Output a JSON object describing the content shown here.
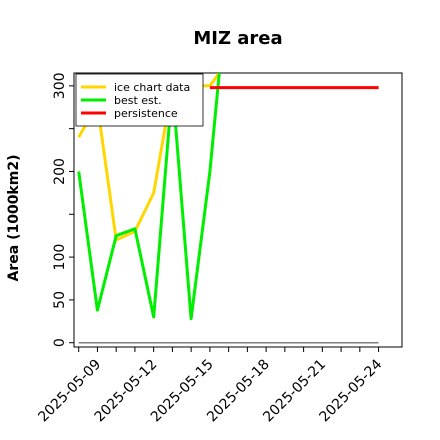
{
  "chart_data": {
    "type": "line",
    "title": "MIZ area",
    "xlabel": "",
    "ylabel": "Area (1000km2)",
    "x_dates": [
      "2025-05-08",
      "2025-05-09",
      "2025-05-10",
      "2025-05-11",
      "2025-05-12",
      "2025-05-13",
      "2025-05-14",
      "2025-05-15",
      "2025-05-16",
      "2025-05-17",
      "2025-05-18",
      "2025-05-19",
      "2025-05-20",
      "2025-05-21",
      "2025-05-22",
      "2025-05-23",
      "2025-05-24"
    ],
    "x_tick_labels": [
      "2025-05-09",
      "2025-05-12",
      "2025-05-15",
      "2025-05-18",
      "2025-05-21",
      "2025-05-24"
    ],
    "y_tick_labels": [
      "0",
      "50",
      "100",
      "200",
      "300"
    ],
    "ylim": [
      -5,
      315
    ],
    "xlim": [
      "2025-05-07T18:00",
      "2025-05-25T06:00"
    ],
    "grid": false,
    "legend_position": "top-left",
    "series": [
      {
        "name": "ice chart data",
        "color": "#FFD700",
        "x": [
          "2025-05-08",
          "2025-05-09",
          "2025-05-10",
          "2025-05-11",
          "2025-05-12",
          "2025-05-13",
          "2025-05-14",
          "2025-05-15",
          "2025-05-15T12:00"
        ],
        "values": [
          240,
          278,
          120,
          130,
          175,
          300,
          300,
          300,
          315
        ]
      },
      {
        "name": "best est.",
        "color": "#00EE00",
        "x": [
          "2025-05-08",
          "2025-05-09",
          "2025-05-10",
          "2025-05-11",
          "2025-05-12",
          "2025-05-13",
          "2025-05-14",
          "2025-05-15",
          "2025-05-15T12:00"
        ],
        "values": [
          200,
          38,
          125,
          133,
          30,
          300,
          28,
          200,
          315
        ]
      },
      {
        "name": "persistence",
        "color": "#FF0000",
        "x": [
          "2025-05-15",
          "2025-05-24"
        ],
        "values": [
          298,
          298
        ]
      }
    ],
    "baseline": {
      "color": "#808080",
      "x": [
        "2025-05-08",
        "2025-05-24"
      ],
      "value": 0
    }
  }
}
